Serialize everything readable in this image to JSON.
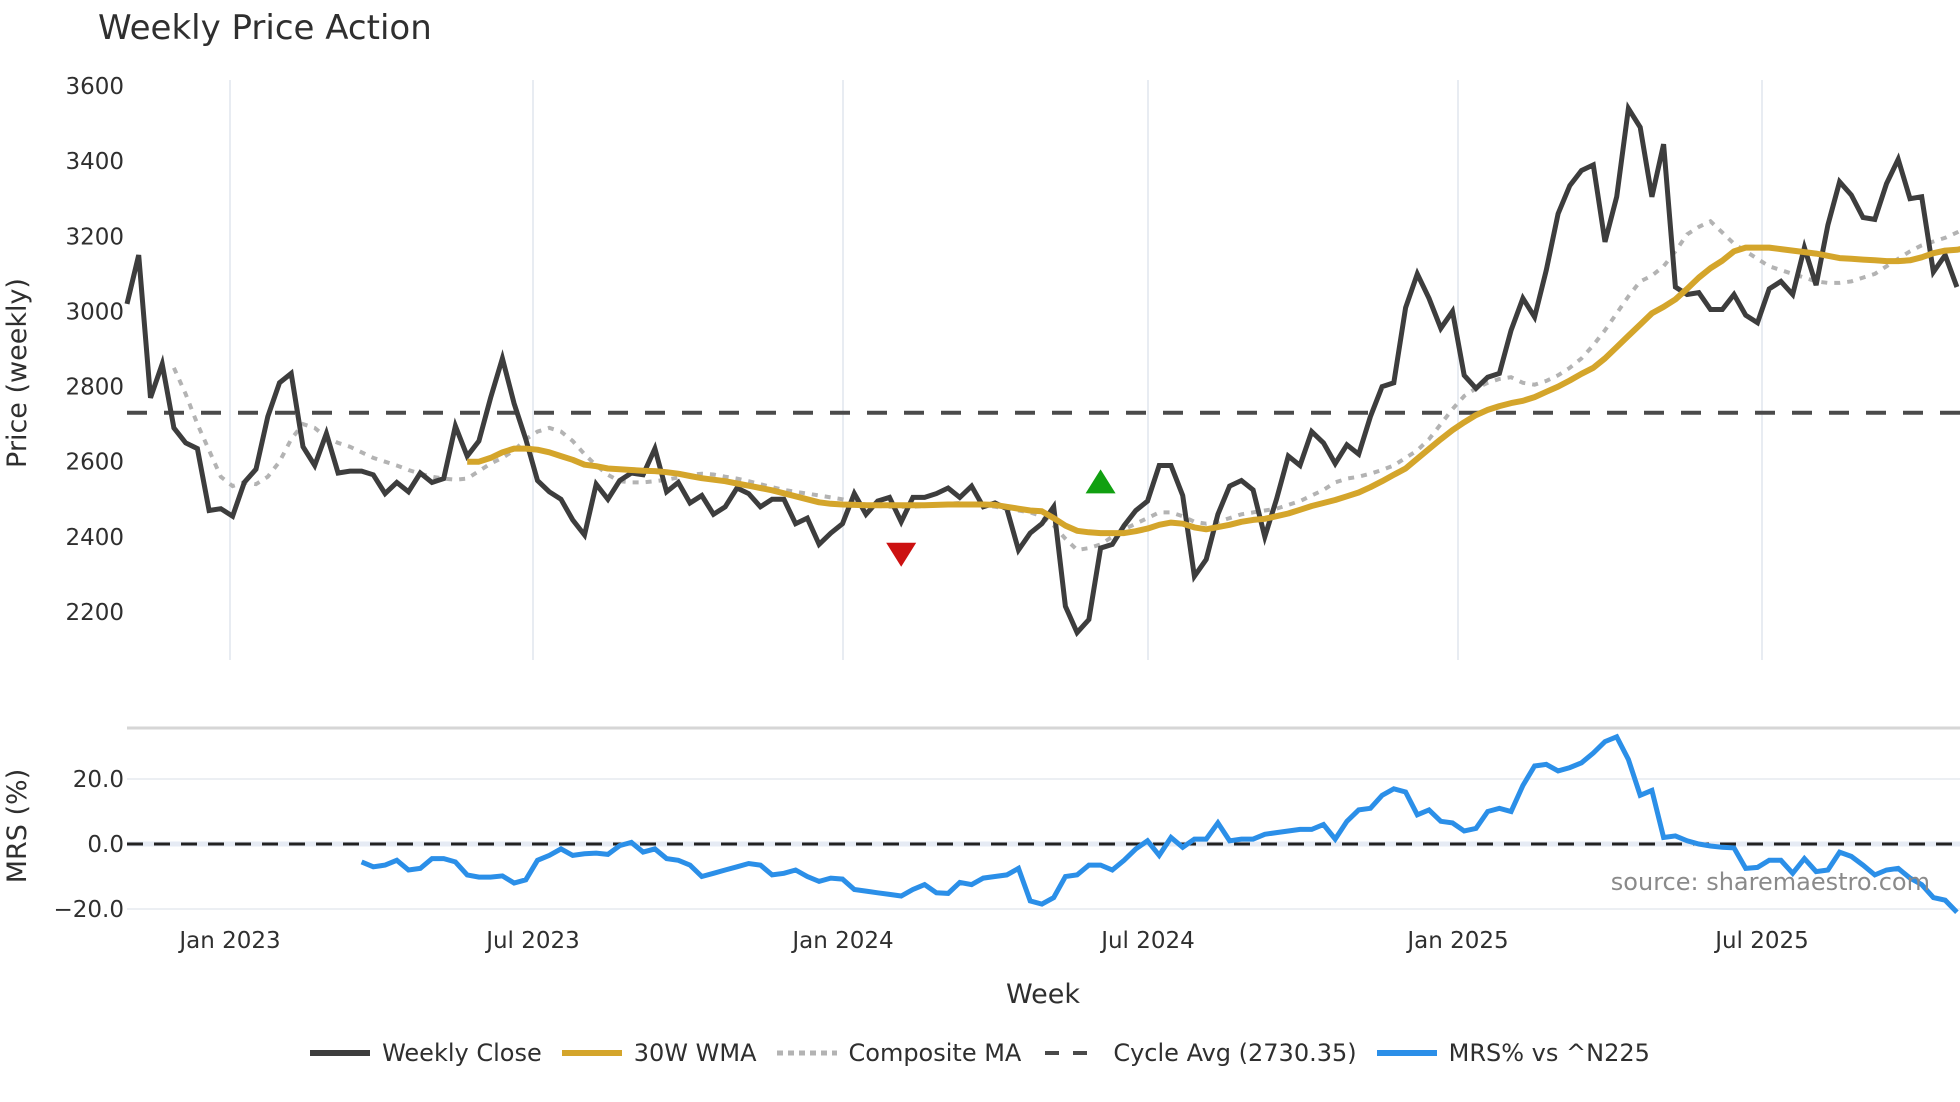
{
  "chart": {
    "title": "Weekly Price Action",
    "source_note": "source: sharemaestro.com"
  },
  "legend": [
    {
      "label": "Weekly Close",
      "color": "#3d3d3d",
      "style": "solid"
    },
    {
      "label": "30W WMA",
      "color": "#d4a52b",
      "style": "solid"
    },
    {
      "label": "Composite MA",
      "color": "#b3b3b3",
      "style": "dotted"
    },
    {
      "label": "Cycle Avg (2730.35)",
      "color": "#4a4a4a",
      "style": "dashed"
    },
    {
      "label": "MRS% vs ^N225",
      "color": "#2b8fe8",
      "style": "solid"
    }
  ],
  "chart_data": [
    {
      "type": "line",
      "title": "Weekly Price Action",
      "xlabel": "Week",
      "ylabel": "Price (weekly)",
      "ylim": [
        2080,
        3620
      ],
      "yticks": [
        2200,
        2400,
        2600,
        2800,
        3000,
        3200,
        3400,
        3600
      ],
      "xticks": [
        "Jan 2023",
        "Jul 2023",
        "Jan 2024",
        "Jul 2024",
        "Jan 2025",
        "Jul 2025"
      ],
      "x_start": "2022-11-04",
      "x_step": "1 week",
      "grid": true,
      "legend_position": "bottom",
      "reference_line": {
        "name": "Cycle Avg",
        "value": 2730.35
      },
      "markers": [
        {
          "type": "sell",
          "shape": "triangle-down",
          "color": "#cc1111",
          "week_index": 66,
          "value": 2355
        },
        {
          "type": "buy",
          "shape": "triangle-up",
          "color": "#11a011",
          "week_index": 83,
          "value": 2545
        }
      ],
      "series": [
        {
          "name": "Weekly Close",
          "color": "#3d3d3d",
          "values": [
            3020,
            3150,
            2770,
            2860,
            2690,
            2650,
            2635,
            2470,
            2475,
            2455,
            2545,
            2580,
            2720,
            2810,
            2835,
            2640,
            2590,
            2675,
            2570,
            2575,
            2575,
            2565,
            2515,
            2545,
            2520,
            2570,
            2545,
            2555,
            2695,
            2615,
            2655,
            2770,
            2875,
            2755,
            2660,
            2550,
            2520,
            2500,
            2445,
            2405,
            2540,
            2500,
            2550,
            2570,
            2565,
            2635,
            2520,
            2545,
            2490,
            2510,
            2460,
            2480,
            2530,
            2515,
            2480,
            2500,
            2500,
            2435,
            2450,
            2380,
            2410,
            2435,
            2515,
            2460,
            2495,
            2505,
            2440,
            2505,
            2505,
            2515,
            2530,
            2505,
            2535,
            2480,
            2490,
            2475,
            2365,
            2410,
            2435,
            2480,
            2215,
            2145,
            2180,
            2370,
            2380,
            2430,
            2470,
            2495,
            2590,
            2590,
            2510,
            2295,
            2340,
            2460,
            2535,
            2550,
            2525,
            2400,
            2500,
            2615,
            2590,
            2680,
            2650,
            2595,
            2645,
            2620,
            2720,
            2800,
            2810,
            3010,
            3100,
            3035,
            2955,
            3000,
            2830,
            2795,
            2825,
            2835,
            2950,
            3035,
            2985,
            3110,
            3260,
            3335,
            3375,
            3390,
            3185,
            3305,
            3540,
            3490,
            3305,
            3445,
            3065,
            3045,
            3050,
            3005,
            3005,
            3045,
            2990,
            2970,
            3060,
            3080,
            3045,
            3170,
            3070,
            3230,
            3345,
            3310,
            3250,
            3245,
            3340,
            3405,
            3300,
            3305,
            3105,
            3150,
            3065
          ]
        },
        {
          "name": "30W WMA",
          "color": "#d4a52b",
          "start_index": 29,
          "values": [
            2600,
            2600,
            2610,
            2625,
            2635,
            2635,
            2632,
            2625,
            2615,
            2605,
            2592,
            2588,
            2582,
            2580,
            2578,
            2576,
            2575,
            2572,
            2568,
            2562,
            2556,
            2552,
            2548,
            2542,
            2536,
            2530,
            2524,
            2516,
            2508,
            2500,
            2492,
            2488,
            2486,
            2485,
            2484,
            2484,
            2484,
            2484,
            2484,
            2484,
            2485,
            2486,
            2486,
            2486,
            2486,
            2485,
            2480,
            2475,
            2470,
            2468,
            2450,
            2430,
            2416,
            2412,
            2410,
            2410,
            2410,
            2415,
            2422,
            2432,
            2438,
            2435,
            2425,
            2420,
            2426,
            2432,
            2440,
            2445,
            2448,
            2455,
            2462,
            2472,
            2482,
            2490,
            2498,
            2508,
            2518,
            2532,
            2548,
            2565,
            2582,
            2608,
            2634,
            2660,
            2684,
            2705,
            2724,
            2738,
            2748,
            2756,
            2762,
            2772,
            2786,
            2800,
            2816,
            2834,
            2850,
            2875,
            2905,
            2935,
            2965,
            2995,
            3012,
            3032,
            3060,
            3090,
            3115,
            3135,
            3160,
            3170,
            3170,
            3170,
            3166,
            3162,
            3158,
            3154,
            3148,
            3142,
            3140,
            3138,
            3136,
            3134,
            3134,
            3136,
            3144,
            3155,
            3162,
            3164,
            3170,
            3176,
            3186,
            3194,
            3198,
            3202,
            3196,
            3194,
            3186
          ]
        },
        {
          "name": "Composite MA",
          "color": "#b3b3b3",
          "start_index": 4,
          "values": [
            2850,
            2780,
            2700,
            2630,
            2560,
            2535,
            2545,
            2540,
            2560,
            2600,
            2660,
            2700,
            2690,
            2665,
            2650,
            2640,
            2625,
            2610,
            2600,
            2590,
            2578,
            2568,
            2560,
            2555,
            2552,
            2555,
            2575,
            2595,
            2610,
            2630,
            2660,
            2680,
            2690,
            2680,
            2655,
            2620,
            2590,
            2565,
            2548,
            2545,
            2545,
            2548,
            2552,
            2558,
            2565,
            2568,
            2566,
            2560,
            2555,
            2548,
            2540,
            2532,
            2525,
            2520,
            2515,
            2510,
            2505,
            2500,
            2492,
            2486,
            2482,
            2480,
            2480,
            2480,
            2482,
            2485,
            2488,
            2490,
            2488,
            2485,
            2480,
            2476,
            2470,
            2465,
            2455,
            2430,
            2395,
            2365,
            2370,
            2380,
            2400,
            2420,
            2435,
            2450,
            2465,
            2465,
            2455,
            2440,
            2435,
            2440,
            2450,
            2460,
            2465,
            2470,
            2475,
            2485,
            2495,
            2510,
            2525,
            2545,
            2555,
            2560,
            2568,
            2578,
            2590,
            2610,
            2630,
            2660,
            2700,
            2740,
            2775,
            2795,
            2810,
            2820,
            2825,
            2810,
            2805,
            2815,
            2830,
            2850,
            2875,
            2910,
            2950,
            2995,
            3040,
            3080,
            3095,
            3120,
            3160,
            3205,
            3225,
            3240,
            3210,
            3180,
            3160,
            3140,
            3120,
            3110,
            3100,
            3090,
            3080,
            3076,
            3076,
            3080,
            3090,
            3100,
            3120,
            3140,
            3160,
            3176,
            3186,
            3196,
            3210,
            3226,
            3236,
            3240,
            3226,
            3210,
            3196
          ]
        }
      ]
    },
    {
      "type": "line",
      "title": "",
      "xlabel": "Week",
      "ylabel": "MRS (%)",
      "ylim": [
        -23,
        35
      ],
      "yticks": [
        -20.0,
        0.0,
        20.0
      ],
      "reference_line": {
        "name": "zero",
        "value": 0.0
      },
      "series": [
        {
          "name": "MRS% vs ^N225",
          "color": "#2b8fe8",
          "start_index": 20,
          "values": [
            -5.5,
            -7,
            -6.5,
            -5,
            -8,
            -7.5,
            -4.5,
            -4.5,
            -5.5,
            -9.5,
            -10.2,
            -10.2,
            -9.8,
            -12,
            -11,
            -5,
            -3.5,
            -1.5,
            -3.5,
            -3,
            -2.8,
            -3.2,
            -0.5,
            0.5,
            -2.5,
            -1.5,
            -4.5,
            -5,
            -6.5,
            -10,
            -9,
            -8,
            -7,
            -6,
            -6.5,
            -9.5,
            -9,
            -8,
            -10,
            -11.5,
            -10.5,
            -10.8,
            -14,
            -14.5,
            -15,
            -15.5,
            -16,
            -14,
            -12.5,
            -15,
            -15.2,
            -11.8,
            -12.5,
            -10.5,
            -10,
            -9.5,
            -7.5,
            -17.5,
            -18.5,
            -16.5,
            -10,
            -9.5,
            -6.5,
            -6.5,
            -8,
            -5,
            -1.5,
            1,
            -3.5,
            2,
            -1,
            1.5,
            1.5,
            6.5,
            1,
            1.5,
            1.5,
            3,
            3.5,
            4,
            4.5,
            4.5,
            6,
            1.5,
            7,
            10.5,
            11,
            15,
            17,
            16,
            9,
            10.5,
            7,
            6.5,
            4,
            4.8,
            10,
            11,
            10,
            18,
            24,
            24.5,
            22.5,
            23.5,
            25,
            28,
            31.5,
            33,
            26,
            15,
            16.5,
            2,
            2.5,
            1,
            0,
            -0.6,
            -1,
            -1.2,
            -7.5,
            -7.2,
            -5,
            -5,
            -9,
            -4.5,
            -8.5,
            -8,
            -2.5,
            -3.8,
            -6.5,
            -9.5,
            -8,
            -7.5,
            -10.5,
            -12.5,
            -16.5,
            -17.3,
            -21
          ]
        }
      ]
    }
  ],
  "axes": {
    "price_yaxis_title": "Price (weekly)",
    "mrs_yaxis_title": "MRS (%)",
    "x_axis_title": "Week",
    "price_ticks": [
      "3600",
      "3400",
      "3200",
      "3000",
      "2800",
      "2600",
      "2400",
      "2200"
    ],
    "mrs_ticks": [
      "20.0",
      "0.0",
      "−20.0"
    ],
    "x_ticks": [
      "Jan 2023",
      "Jul 2023",
      "Jan 2024",
      "Jul 2024",
      "Jan 2025",
      "Jul 2025"
    ]
  }
}
